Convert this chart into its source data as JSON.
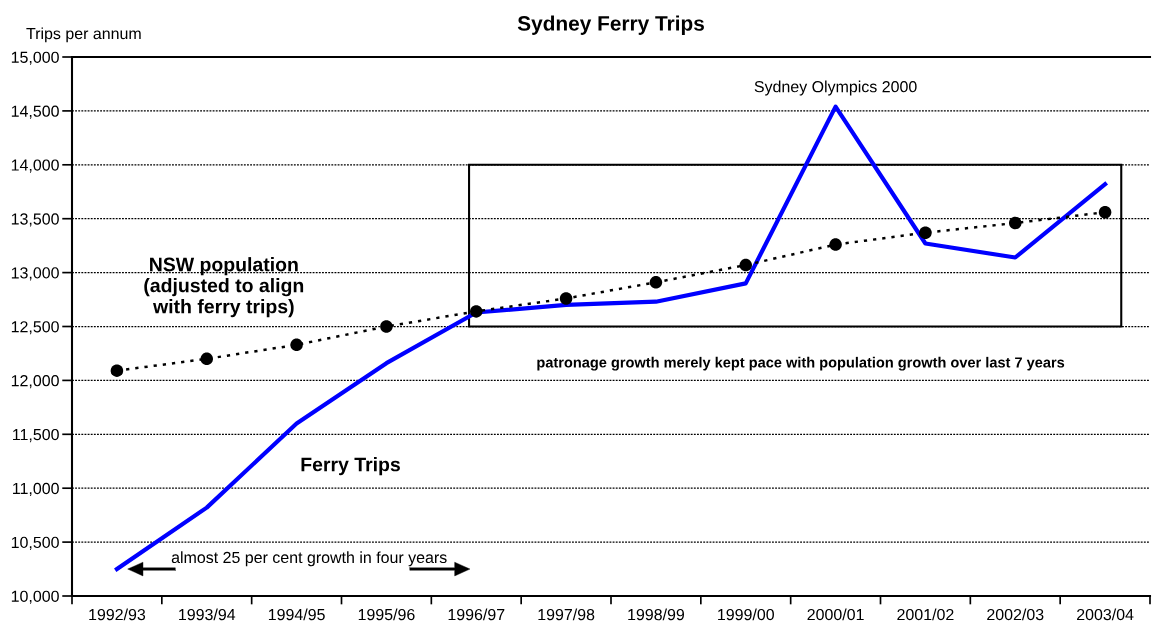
{
  "chart_data": {
    "type": "line",
    "title": "Sydney Ferry Trips",
    "ylabel": "Trips per annum",
    "categories": [
      "1992/93",
      "1993/94",
      "1994/95",
      "1995/96",
      "1996/97",
      "1997/98",
      "1998/99",
      "1999/00",
      "2000/01",
      "2001/02",
      "2002/03",
      "2003/04"
    ],
    "series": [
      {
        "name": "Ferry Trips",
        "color": "#0000ff",
        "marker": "none",
        "line_style": "solid",
        "values": [
          10250,
          10820,
          11600,
          12160,
          12630,
          12700,
          12730,
          12900,
          14540,
          13270,
          13140,
          13820
        ]
      },
      {
        "name": "NSW population\n(adjusted to align\nwith ferry trips)",
        "color": "#000000",
        "marker": "circle",
        "line_style": "dotted",
        "values": [
          12090,
          12200,
          12330,
          12500,
          12640,
          12760,
          12910,
          13070,
          13260,
          13370,
          13460,
          13560
        ]
      }
    ],
    "ylim": [
      10000,
      15000
    ],
    "yticks": [
      {
        "value": 10000,
        "label": "10,000"
      },
      {
        "value": 10500,
        "label": "10,500"
      },
      {
        "value": 11000,
        "label": "11,000"
      },
      {
        "value": 11500,
        "label": "11,500"
      },
      {
        "value": 12000,
        "label": "12,000"
      },
      {
        "value": 12500,
        "label": "12,500"
      },
      {
        "value": 13000,
        "label": "13,000"
      },
      {
        "value": 13500,
        "label": "13,500"
      },
      {
        "value": 14000,
        "label": "14,000"
      },
      {
        "value": 14500,
        "label": "14,500"
      },
      {
        "value": 15000,
        "label": "15,000"
      }
    ],
    "grid": "y",
    "annotations": [
      {
        "text": "Sydney Olympics 2000",
        "x": "2000/01",
        "y": 14540
      },
      "patronage growth merely kept pace with population growth over last 7 years",
      "almost 25 per cent growth in four years"
    ]
  }
}
